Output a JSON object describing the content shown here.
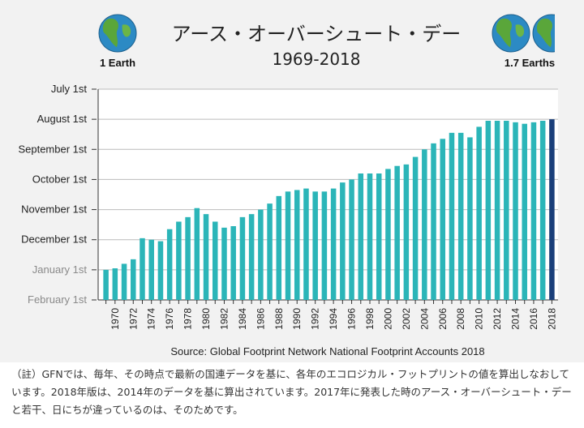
{
  "chart_data": {
    "type": "bar",
    "title": "アース・オーバーシュート・デー",
    "subtitle": "1969-2018",
    "left_badge_label": "1 Earth",
    "right_badge_label": "1.7 Earths",
    "source": "Source: Global Footprint Network National Footprint Accounts 2018",
    "y_ticks": [
      "July 1st",
      "August 1st",
      "September 1st",
      "October 1st",
      "November 1st",
      "December 1st",
      "January 1st",
      "February 1st"
    ],
    "ylim": [
      0,
      7
    ],
    "x_tick_labels": [
      "1970",
      "1972",
      "1974",
      "1976",
      "1978",
      "1980",
      "1982",
      "1984",
      "1986",
      "1988",
      "1990",
      "1992",
      "1994",
      "1996",
      "1998",
      "2000",
      "2002",
      "2004",
      "2006",
      "2008",
      "2010",
      "2012",
      "2014",
      "2016",
      "2018"
    ],
    "colors": {
      "bar": "#2bb5b8",
      "highlight": "#1a3f7a",
      "grid": "#bbbbbb"
    },
    "series": [
      {
        "x": [
          1969,
          1970,
          1971,
          1972,
          1973,
          1974,
          1975,
          1976,
          1977,
          1978,
          1979,
          1980,
          1981,
          1982,
          1983,
          1984,
          1985,
          1986,
          1987,
          1988,
          1989,
          1990,
          1991,
          1992,
          1993,
          1994,
          1995,
          1996,
          1997,
          1998,
          1999,
          2000,
          2001,
          2002,
          2003,
          2004,
          2005,
          2006,
          2007,
          2008,
          2009,
          2010,
          2011,
          2012,
          2013,
          2014,
          2015,
          2016,
          2017,
          2018
        ],
        "values": [
          1.0,
          1.05,
          1.2,
          1.35,
          2.05,
          2.0,
          1.95,
          2.35,
          2.6,
          2.75,
          3.05,
          2.85,
          2.6,
          2.4,
          2.45,
          2.75,
          2.85,
          3.0,
          3.2,
          3.45,
          3.6,
          3.65,
          3.7,
          3.6,
          3.6,
          3.7,
          3.9,
          4.0,
          4.2,
          4.2,
          4.2,
          4.35,
          4.45,
          4.5,
          4.75,
          5.0,
          5.2,
          5.35,
          5.55,
          5.55,
          5.4,
          5.75,
          5.95,
          5.95,
          5.95,
          5.9,
          5.85,
          5.9,
          5.95,
          6.0
        ]
      }
    ]
  },
  "note": {
    "line1": "（註）GFNでは、毎年、その時点で最新の国連データを基に、各年のエコロジカル・フットプリントの値を算出しなおして",
    "line2": "います。2018年版は、2014年のデータを基に算出されています。2017年に発表した時のアース・オーバーシュート・デー",
    "line3": "と若干、日にちが違っているのは、そのためです。"
  }
}
